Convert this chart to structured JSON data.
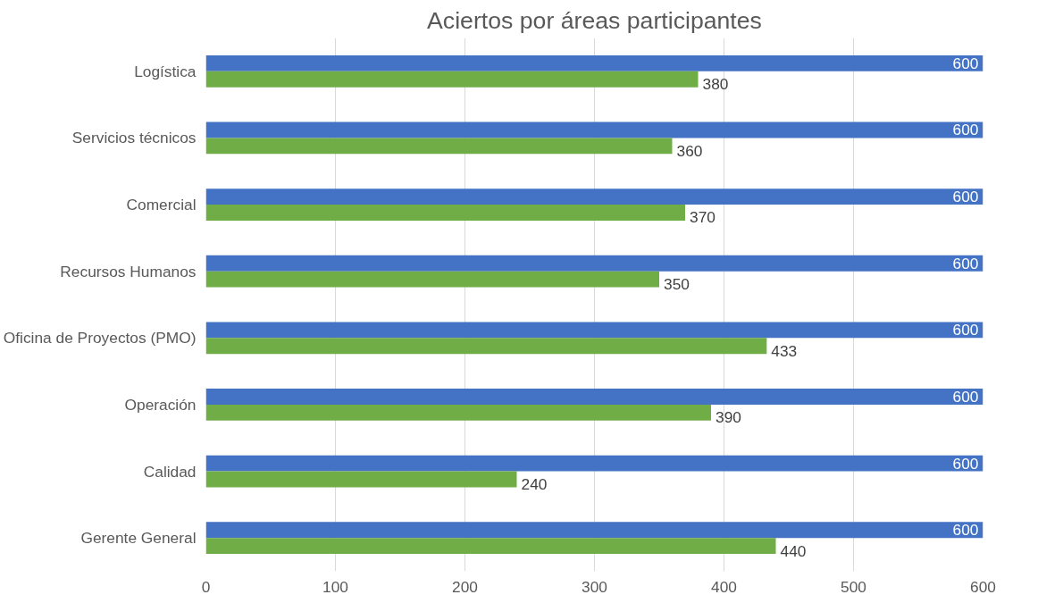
{
  "chart_data": {
    "type": "bar",
    "orientation": "horizontal",
    "title": "Aciertos por áreas participantes",
    "categories": [
      "Logística",
      "Servicios técnicos",
      "Comercial",
      "Recursos Humanos",
      "Oficina de Proyectos (PMO)",
      "Operación",
      "Calidad",
      "Gerente General"
    ],
    "series": [
      {
        "color": "#4472c4",
        "values": [
          600,
          600,
          600,
          600,
          600,
          600,
          600,
          600
        ]
      },
      {
        "color": "#70ad47",
        "values": [
          380,
          360,
          370,
          350,
          433,
          390,
          240,
          440
        ]
      }
    ],
    "xlim": [
      0,
      600
    ],
    "xticks": [
      0,
      100,
      200,
      300,
      400,
      500,
      600
    ],
    "grid": "x",
    "data_labels": true
  }
}
